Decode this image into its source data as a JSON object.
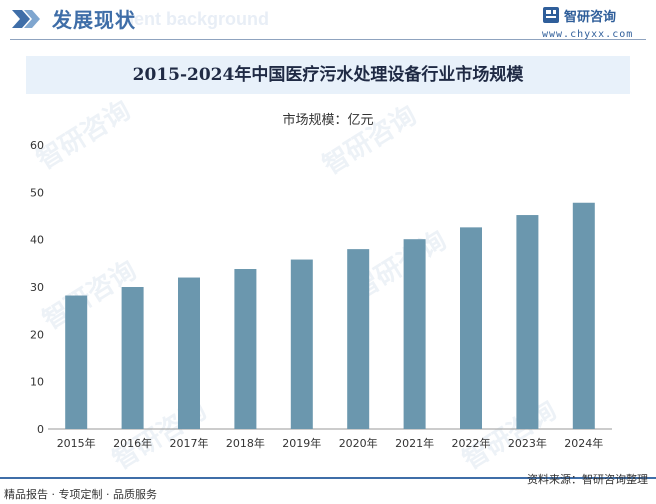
{
  "header": {
    "section_title": "发展现状",
    "section_watermark": "ment background"
  },
  "brand": {
    "name": "智研咨询",
    "url": "www.chyxx.com"
  },
  "watermark_text": "智研咨询",
  "colors": {
    "bar": "#6b97ae",
    "accent": "#3f6ea8",
    "title_band": "#e8f1fa"
  },
  "chart_data": {
    "type": "bar",
    "title": "2015-2024年中国医疗污水处理设备行业市场规模",
    "ylabel": "市场规模：亿元",
    "xlabel": "",
    "categories": [
      "2015年",
      "2016年",
      "2017年",
      "2018年",
      "2019年",
      "2020年",
      "2021年",
      "2022年",
      "2023年",
      "2024年"
    ],
    "values": [
      28.2,
      30.0,
      32.0,
      33.8,
      35.8,
      38.0,
      40.1,
      42.6,
      45.2,
      47.8
    ],
    "ylim": [
      0,
      60
    ],
    "yticks": [
      "0",
      "10",
      "20",
      "30",
      "40",
      "50",
      "60"
    ],
    "grid": false,
    "legend": "none"
  },
  "footer": {
    "left": "精品报告 · 专项定制 · 品质服务",
    "right": "资料来源：智研咨询整理"
  }
}
